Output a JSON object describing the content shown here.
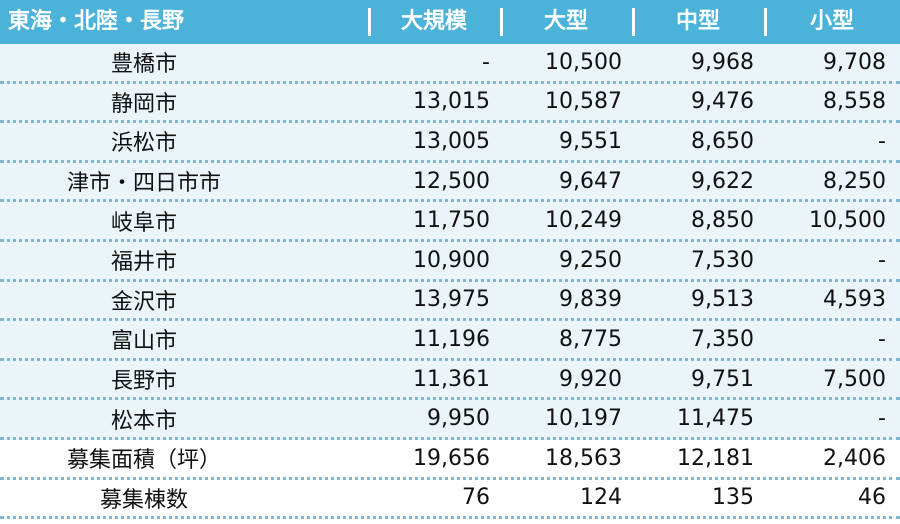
{
  "header": {
    "region": "東海・北陸・長野",
    "col1": "大規模",
    "col2": "大型",
    "col3": "中型",
    "col4": "小型"
  },
  "rows": [
    {
      "name": "豊橋市",
      "v1": "-",
      "v2": "10,500",
      "v3": "9,968",
      "v4": "9,708"
    },
    {
      "name": "静岡市",
      "v1": "13,015",
      "v2": "10,587",
      "v3": "9,476",
      "v4": "8,558"
    },
    {
      "name": "浜松市",
      "v1": "13,005",
      "v2": "9,551",
      "v3": "8,650",
      "v4": "-"
    },
    {
      "name": "津市・四日市市",
      "v1": "12,500",
      "v2": "9,647",
      "v3": "9,622",
      "v4": "8,250"
    },
    {
      "name": "岐阜市",
      "v1": "11,750",
      "v2": "10,249",
      "v3": "8,850",
      "v4": "10,500"
    },
    {
      "name": "福井市",
      "v1": "10,900",
      "v2": "9,250",
      "v3": "7,530",
      "v4": "-"
    },
    {
      "name": "金沢市",
      "v1": "13,975",
      "v2": "9,839",
      "v3": "9,513",
      "v4": "4,593"
    },
    {
      "name": "富山市",
      "v1": "11,196",
      "v2": "8,775",
      "v3": "7,350",
      "v4": "-"
    },
    {
      "name": "長野市",
      "v1": "11,361",
      "v2": "9,920",
      "v3": "9,751",
      "v4": "7,500"
    },
    {
      "name": "松本市",
      "v1": "9,950",
      "v2": "10,197",
      "v3": "11,475",
      "v4": "-"
    },
    {
      "name": "募集面積（坪）",
      "v1": "19,656",
      "v2": "18,563",
      "v3": "12,181",
      "v4": "2,406"
    },
    {
      "name": "募集棟数",
      "v1": "76",
      "v2": "124",
      "v3": "135",
      "v4": "46"
    }
  ]
}
